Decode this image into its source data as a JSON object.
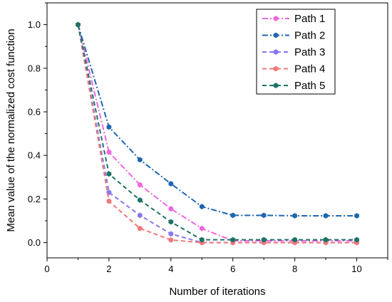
{
  "chart_data": {
    "type": "line",
    "title": "",
    "xlabel": "Number of iterations",
    "ylabel": "Mean value of the normalized cost function",
    "xlim": [
      0,
      11
    ],
    "ylim": [
      -0.07,
      1.1
    ],
    "x_ticks": [
      0,
      2,
      4,
      6,
      8,
      10
    ],
    "y_ticks": [
      0.0,
      0.2,
      0.4,
      0.6,
      0.8,
      1.0
    ],
    "x_tick_labels": [
      "0",
      "2",
      "4",
      "6",
      "8",
      "10"
    ],
    "y_tick_labels": [
      "0.0",
      "0.2",
      "0.4",
      "0.6",
      "0.8",
      "1.0"
    ],
    "grid": false,
    "legend_position": "top-right",
    "x": [
      1,
      2,
      3,
      4,
      5,
      6,
      7,
      8,
      9,
      10
    ],
    "series": [
      {
        "name": "Path 1",
        "color": "#ee66dd",
        "dash": "dash-dot",
        "marker": "hexagon",
        "values": [
          1.0,
          0.415,
          0.265,
          0.155,
          0.065,
          0.008,
          0.008,
          0.008,
          0.008,
          0.008
        ]
      },
      {
        "name": "Path 2",
        "color": "#1f66b0",
        "dash": "dash-dot",
        "marker": "hexagon",
        "values": [
          1.0,
          0.53,
          0.38,
          0.27,
          0.165,
          0.125,
          0.125,
          0.123,
          0.123,
          0.123
        ]
      },
      {
        "name": "Path 3",
        "color": "#8877ee",
        "dash": "dash",
        "marker": "hexagon",
        "values": [
          1.0,
          0.23,
          0.125,
          0.04,
          0.0,
          0.0,
          0.0,
          0.0,
          0.0,
          0.0
        ]
      },
      {
        "name": "Path 4",
        "color": "#f07878",
        "dash": "dash",
        "marker": "hexagon",
        "values": [
          1.0,
          0.19,
          0.065,
          0.012,
          0.0,
          0.0,
          0.0,
          0.0,
          0.0,
          0.0
        ]
      },
      {
        "name": "Path 5",
        "color": "#1e7366",
        "dash": "dash",
        "marker": "hexagon",
        "values": [
          1.0,
          0.315,
          0.195,
          0.095,
          0.013,
          0.013,
          0.013,
          0.013,
          0.013,
          0.013
        ]
      }
    ]
  }
}
